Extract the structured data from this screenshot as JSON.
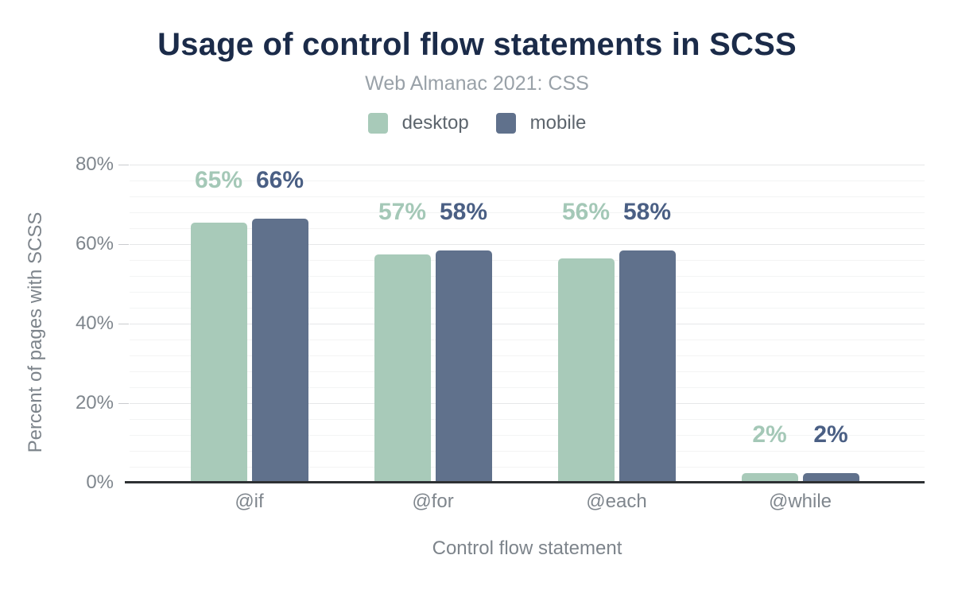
{
  "chart_data": {
    "type": "bar",
    "title": "Usage of control flow statements in SCSS",
    "subtitle": "Web Almanac 2021: CSS",
    "xlabel": "Control flow statement",
    "ylabel": "Percent of pages with SCSS",
    "categories": [
      "@if",
      "@for",
      "@each",
      "@while"
    ],
    "series": [
      {
        "name": "desktop",
        "color": "#a8cab9",
        "label_color": "#a4c8b7",
        "values": [
          65,
          57,
          56,
          2
        ],
        "labels": [
          "65%",
          "57%",
          "56%",
          "2%"
        ]
      },
      {
        "name": "mobile",
        "color": "#60718c",
        "label_color": "#4a5f84",
        "values": [
          66,
          58,
          58,
          2
        ],
        "labels": [
          "66%",
          "58%",
          "58%",
          "2%"
        ]
      }
    ],
    "ylim": [
      0,
      80
    ],
    "yticks": [
      {
        "value": 0,
        "label": "0%"
      },
      {
        "value": 20,
        "label": "20%"
      },
      {
        "value": 40,
        "label": "40%"
      },
      {
        "value": 60,
        "label": "60%"
      },
      {
        "value": 80,
        "label": "80%"
      }
    ],
    "grid": {
      "minor_step": 4,
      "major_step": 20,
      "on": true
    },
    "legend_position": "top"
  },
  "colors": {
    "title": "#1b2b49",
    "subtitle": "#99a1a8",
    "axis_text": "#7f868d",
    "axis_line": "#2e3134"
  }
}
